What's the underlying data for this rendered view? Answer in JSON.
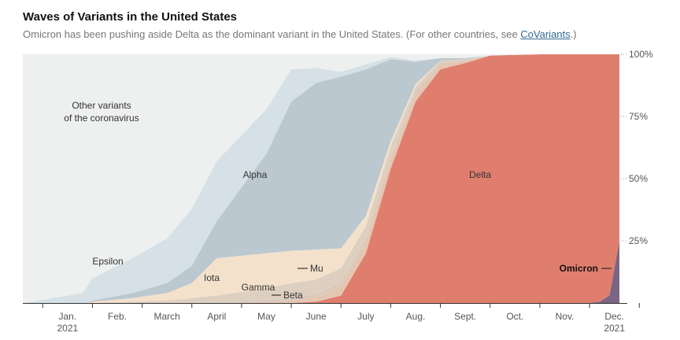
{
  "header": {
    "title": "Waves of Variants in the United States",
    "subtitle_before": "Omicron has been pushing aside Delta as the dominant variant in the United States. (For other countries, see ",
    "subtitle_link": "CoVariants",
    "subtitle_after": ".)"
  },
  "chart_data": {
    "type": "area",
    "stacked": true,
    "title": "Waves of Variants in the United States",
    "xlabel": "",
    "ylabel": "",
    "ylim": [
      0,
      100
    ],
    "x_range": [
      0,
      11.6
    ],
    "x_tick_labels": [
      "Jan.",
      "Feb.",
      "March",
      "April",
      "May",
      "June",
      "July",
      "Aug.",
      "Sept.",
      "Oct.",
      "Nov.",
      "Dec."
    ],
    "x_year_labels": [
      {
        "at": 1,
        "label": "2021"
      },
      {
        "at": 12,
        "label": "2021"
      }
    ],
    "y_ticks": [
      25,
      50,
      75,
      100
    ],
    "y_tick_labels": [
      "25%",
      "50%",
      "75%",
      "100%"
    ],
    "x": [
      0,
      0.8,
      1.0,
      1.8,
      2.5,
      3.0,
      3.5,
      4.5,
      5.0,
      5.5,
      6.0,
      6.5,
      7.0,
      7.5,
      8.0,
      8.5,
      9.0,
      10.0,
      10.5,
      11.0,
      11.2,
      11.4,
      11.6
    ],
    "series": [
      {
        "name": "Omicron",
        "label": "Omicron",
        "color": "#7a6582",
        "values": [
          0,
          0,
          0,
          0,
          0,
          0,
          0,
          0,
          0,
          0,
          0,
          0,
          0,
          0,
          0,
          0,
          0,
          0,
          0,
          0,
          0.5,
          3,
          25
        ]
      },
      {
        "name": "Delta",
        "label": "Delta",
        "color": "#e07e6e",
        "values": [
          0,
          0,
          0,
          0,
          0,
          0,
          0,
          0,
          0,
          0.5,
          3,
          20,
          54,
          81,
          94,
          96.5,
          99.5,
          100,
          100,
          100,
          99.5,
          97,
          75
        ]
      },
      {
        "name": "Mu",
        "label": "Mu",
        "color": "#e3c7b3",
        "values": [
          0,
          0,
          0,
          0,
          0,
          0,
          0,
          0.5,
          1,
          2,
          4,
          5,
          4,
          3,
          2,
          1,
          0,
          0,
          0,
          0,
          0,
          0,
          0
        ]
      },
      {
        "name": "Beta",
        "label": "Beta",
        "color": "#d6c8bb",
        "values": [
          0,
          0,
          0,
          0,
          0,
          0,
          0,
          0.5,
          1,
          1,
          1,
          1,
          1,
          1,
          0.5,
          0,
          0,
          0,
          0,
          0,
          0,
          0,
          0
        ]
      },
      {
        "name": "Gamma",
        "label": "Gamma",
        "color": "#ded0c0",
        "values": [
          0,
          0,
          0,
          0.5,
          1,
          2,
          3,
          5,
          6,
          6,
          6,
          5,
          4,
          2,
          1,
          0.5,
          0,
          0,
          0,
          0,
          0,
          0,
          0
        ]
      },
      {
        "name": "Iota",
        "label": "Iota",
        "color": "#f4e1cc",
        "values": [
          0,
          0,
          0.5,
          1.5,
          3,
          6,
          15,
          14,
          13,
          12,
          8,
          4,
          2,
          1,
          0,
          0,
          0,
          0,
          0,
          0,
          0,
          0,
          0
        ]
      },
      {
        "name": "Alpha",
        "label": "Alpha",
        "color": "#bcc8cf",
        "values": [
          0,
          0,
          0.5,
          2,
          4,
          7,
          15,
          40,
          60,
          67,
          69,
          59,
          33,
          9,
          1,
          0.5,
          0,
          0,
          0,
          0,
          0,
          0,
          0
        ]
      },
      {
        "name": "Epsilon",
        "label": "Epsilon",
        "color": "#d5e1e6",
        "values": [
          0,
          4,
          9,
          14,
          18,
          23,
          24,
          18,
          13,
          6,
          2,
          2,
          1,
          0.5,
          0,
          0,
          0,
          0,
          0,
          0,
          0,
          0,
          0
        ]
      },
      {
        "name": "Other variants",
        "label": "Other variants of the coronavirus",
        "color": "#eef0ef",
        "values": [
          100,
          96,
          90,
          82,
          74,
          62,
          43,
          22,
          6,
          5.5,
          7,
          4,
          1,
          2.5,
          1.5,
          1.5,
          0.5,
          0,
          0,
          0,
          0,
          0,
          0
        ]
      }
    ],
    "annotations": [
      {
        "text": "Other variants",
        "line2": "of the coronavirus",
        "series": "Other variants"
      },
      {
        "text": "Epsilon",
        "series": "Epsilon"
      },
      {
        "text": "Alpha",
        "series": "Alpha"
      },
      {
        "text": "Iota",
        "series": "Iota"
      },
      {
        "text": "Gamma",
        "series": "Gamma"
      },
      {
        "text": "Beta",
        "series": "Beta"
      },
      {
        "text": "Mu",
        "series": "Mu"
      },
      {
        "text": "Delta",
        "series": "Delta"
      },
      {
        "text": "Omicron",
        "series": "Omicron"
      }
    ]
  }
}
